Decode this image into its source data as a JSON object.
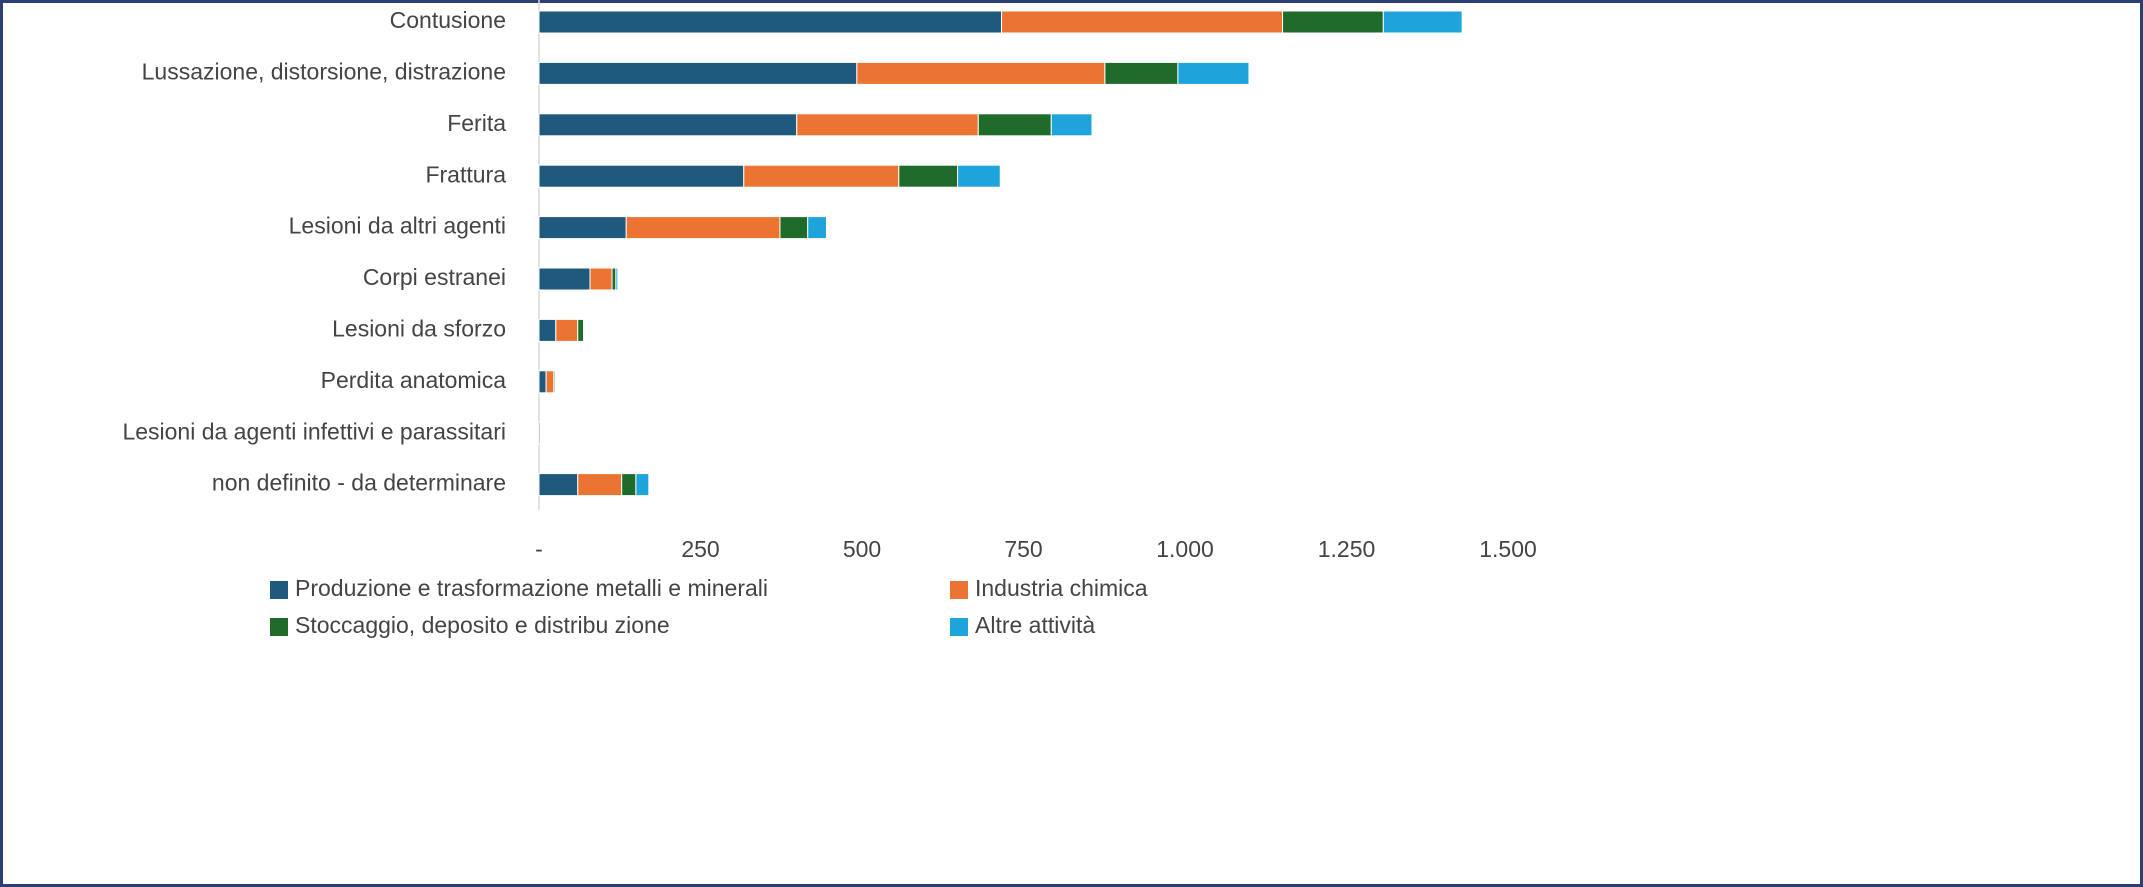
{
  "chart_data": {
    "type": "bar",
    "orientation": "horizontal",
    "stacked": true,
    "categories": [
      "Contusione",
      "Lussazione, distorsione, distrazione",
      "Ferita",
      "Frattura",
      "Lesioni da altri agenti",
      "Corpi estranei",
      "Lesioni da sforzo",
      "Perdita anatomica",
      "Lesioni da agenti infettivi e parassitari",
      "non definito - da determinare"
    ],
    "series": [
      {
        "name": "Produzione e trasformazione metalli e minerali",
        "color": "#1f5a7d",
        "values": [
          716,
          492,
          399,
          317,
          135,
          79,
          26,
          11,
          0,
          60
        ]
      },
      {
        "name": "Industria chimica",
        "color": "#ec7433",
        "values": [
          435,
          384,
          281,
          240,
          238,
          34,
          34,
          12,
          0,
          68
        ]
      },
      {
        "name": "Stoccaggio, deposito e distribu zione",
        "color": "#1e6b2b",
        "values": [
          156,
          113,
          113,
          91,
          43,
          6,
          9,
          2,
          2,
          22
        ]
      },
      {
        "name": "Altre attività",
        "color": "#1ea3da",
        "values": [
          122,
          110,
          63,
          66,
          29,
          3,
          0,
          0,
          0,
          20
        ]
      }
    ],
    "xlim": [
      0,
      1500
    ],
    "xticks": [
      {
        "value": 0,
        "label": "-"
      },
      250,
      500,
      750,
      {
        "value": 1000,
        "label": "1.000"
      },
      {
        "value": 1250,
        "label": "1.250"
      },
      {
        "value": 1500,
        "label": "1.500"
      }
    ],
    "grid": false,
    "legend": "bottom"
  }
}
